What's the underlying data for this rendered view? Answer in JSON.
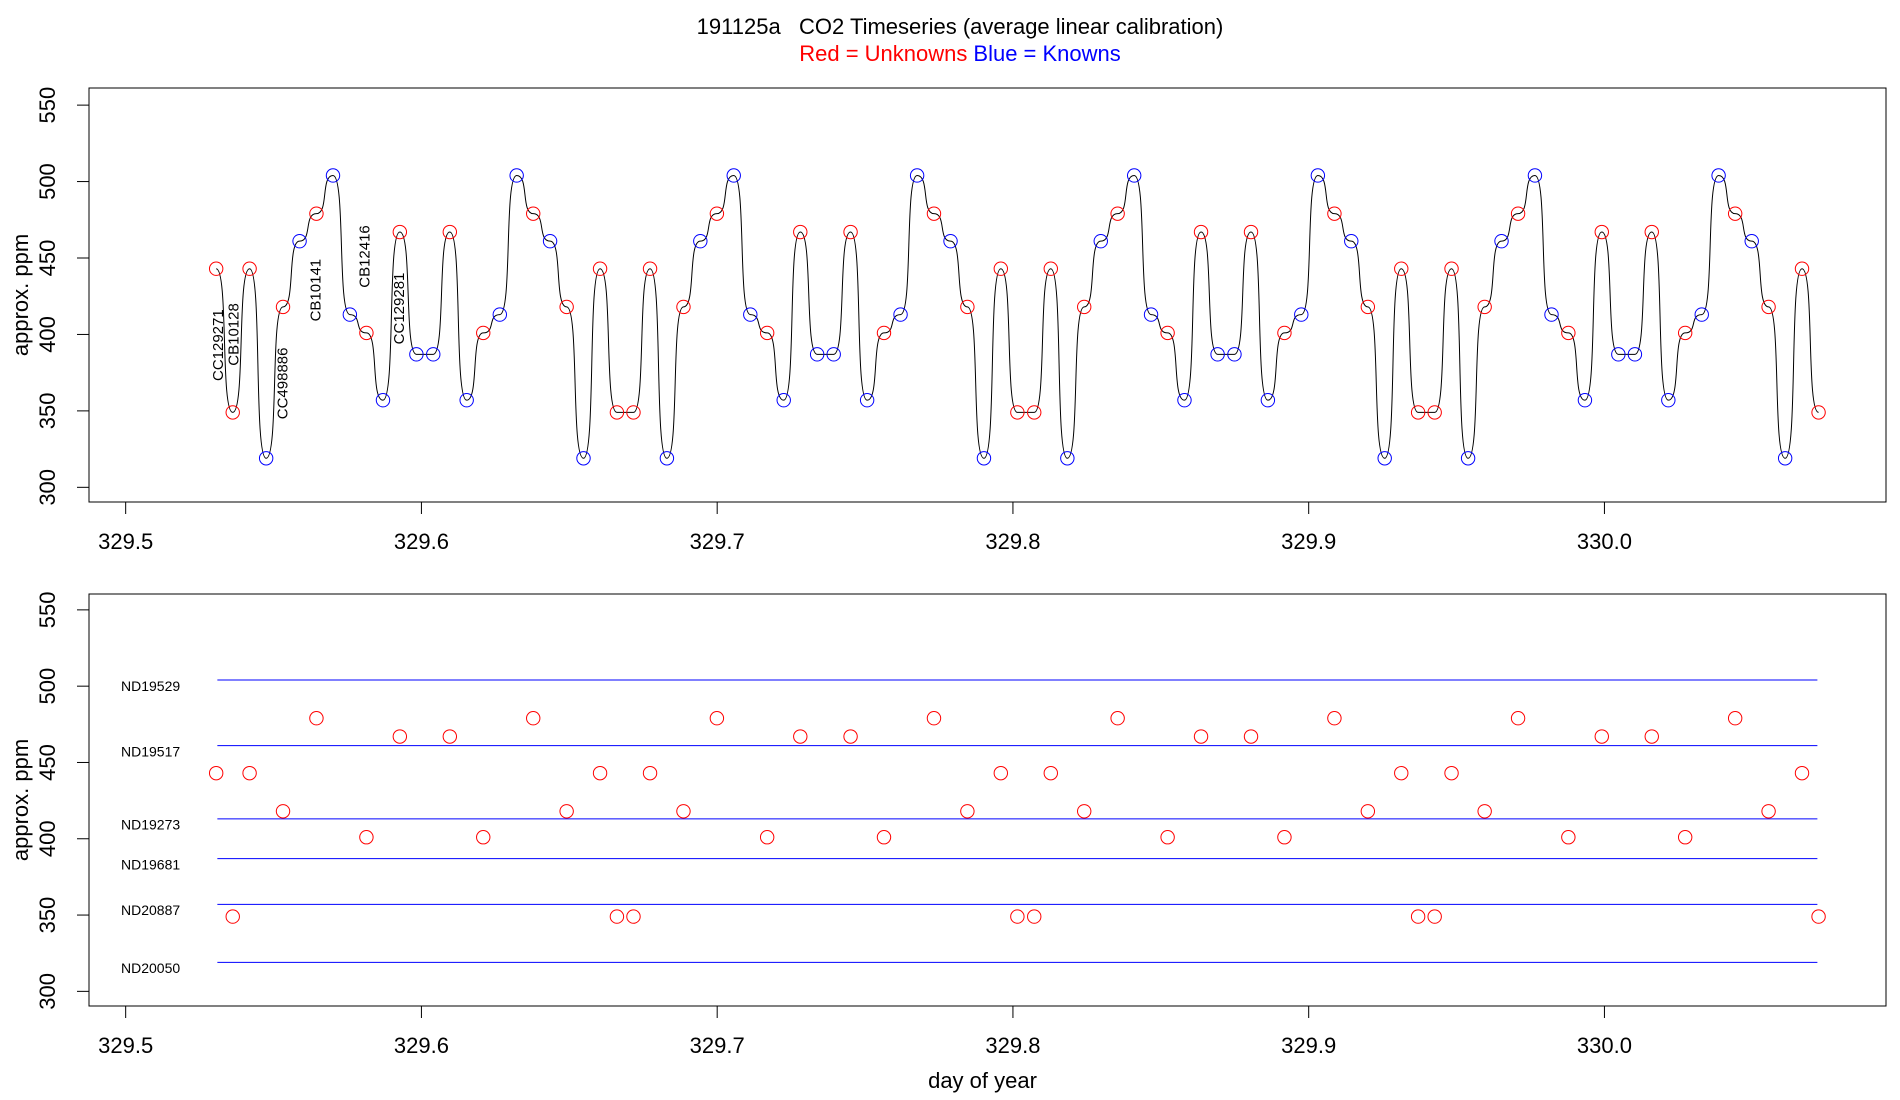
{
  "chart_data": [
    {
      "type": "line",
      "title": "191125a   CO2 Timeseries (average linear calibration)",
      "subtitle": [
        {
          "text": "Red = Unknowns",
          "color": "#ff0000"
        },
        {
          "text": "Blue = Knowns",
          "color": "#0000ff"
        }
      ],
      "y_label": "approx. ppm",
      "xlim": [
        329.4876,
        330.0952
      ],
      "ylim": [
        290.4,
        561.2
      ],
      "xticks": [
        329.5,
        329.6,
        329.7,
        329.8,
        329.9,
        {
          "value": 330,
          "label": "330.0"
        }
      ],
      "yticks": [
        300,
        350,
        400,
        450,
        500,
        550
      ],
      "line_color": "#000000",
      "x": [
        329.5306,
        329.5362,
        329.5419,
        329.5475,
        329.5532,
        329.5588,
        329.5645,
        329.5701,
        329.5758,
        329.5814,
        329.587,
        329.5927,
        329.5983,
        329.604,
        329.6096,
        329.6153,
        329.6209,
        329.6265,
        329.6322,
        329.6378,
        329.6435,
        329.6491,
        329.6548,
        329.6604,
        329.6661,
        329.6717,
        329.6773,
        329.683,
        329.6886,
        329.6943,
        329.6999,
        329.7056,
        329.7112,
        329.7169,
        329.7225,
        329.7281,
        329.7338,
        329.7394,
        329.7451,
        329.7507,
        329.7564,
        329.762,
        329.7676,
        329.7733,
        329.7789,
        329.7846,
        329.7902,
        329.7959,
        329.8015,
        329.8072,
        329.8128,
        329.8184,
        329.8241,
        329.8297,
        329.8354,
        329.841,
        329.8467,
        329.8523,
        329.858,
        329.8636,
        329.8692,
        329.8749,
        329.8805,
        329.8862,
        329.8918,
        329.8975,
        329.9031,
        329.9087,
        329.9144,
        329.92,
        329.9257,
        329.9313,
        329.937,
        329.9426,
        329.9483,
        329.9539,
        329.9595,
        329.9652,
        329.9708,
        329.9765,
        329.9821,
        329.9878,
        329.9934,
        329.9991,
        330.0047,
        330.0103,
        330.016,
        330.0216,
        330.0273,
        330.0329,
        330.0386,
        330.0442,
        330.0498,
        330.0555,
        330.0611,
        330.0668,
        330.0724
      ],
      "values": [
        443,
        349,
        443,
        319,
        418,
        461,
        479,
        504,
        413,
        401,
        357,
        467,
        387,
        387,
        467,
        357,
        401,
        413,
        504,
        479,
        461,
        418,
        319,
        443,
        349,
        349,
        443,
        319,
        418,
        461,
        479,
        504,
        413,
        401,
        357,
        467,
        387,
        387,
        467,
        357,
        401,
        413,
        504,
        479,
        461,
        418,
        319,
        443,
        349,
        349,
        443,
        319,
        418,
        461,
        479,
        504,
        413,
        401,
        357,
        467,
        387,
        387,
        467,
        357,
        401,
        413,
        504,
        479,
        461,
        418,
        319,
        443,
        349,
        349,
        443,
        319,
        418,
        461,
        479,
        504,
        413,
        401,
        357,
        467,
        387,
        387,
        467,
        357,
        401,
        413,
        504,
        479,
        461,
        418,
        319,
        443,
        349
      ],
      "point_colors": [
        "#ff0000",
        "#ff0000",
        "#ff0000",
        "#0000ff",
        "#ff0000",
        "#0000ff",
        "#ff0000",
        "#0000ff",
        "#0000ff",
        "#ff0000",
        "#0000ff",
        "#ff0000",
        "#0000ff",
        "#0000ff",
        "#ff0000",
        "#0000ff",
        "#ff0000",
        "#0000ff",
        "#0000ff",
        "#ff0000",
        "#0000ff",
        "#ff0000",
        "#0000ff",
        "#ff0000",
        "#ff0000",
        "#ff0000",
        "#ff0000",
        "#0000ff",
        "#ff0000",
        "#0000ff",
        "#ff0000",
        "#0000ff",
        "#0000ff",
        "#ff0000",
        "#0000ff",
        "#ff0000",
        "#0000ff",
        "#0000ff",
        "#ff0000",
        "#0000ff",
        "#ff0000",
        "#0000ff",
        "#0000ff",
        "#ff0000",
        "#0000ff",
        "#ff0000",
        "#0000ff",
        "#ff0000",
        "#ff0000",
        "#ff0000",
        "#ff0000",
        "#0000ff",
        "#ff0000",
        "#0000ff",
        "#ff0000",
        "#0000ff",
        "#0000ff",
        "#ff0000",
        "#0000ff",
        "#ff0000",
        "#0000ff",
        "#0000ff",
        "#ff0000",
        "#0000ff",
        "#ff0000",
        "#0000ff",
        "#0000ff",
        "#ff0000",
        "#0000ff",
        "#ff0000",
        "#0000ff",
        "#ff0000",
        "#ff0000",
        "#ff0000",
        "#ff0000",
        "#0000ff",
        "#ff0000",
        "#0000ff",
        "#ff0000",
        "#0000ff",
        "#0000ff",
        "#ff0000",
        "#0000ff",
        "#ff0000",
        "#0000ff",
        "#0000ff",
        "#ff0000",
        "#0000ff",
        "#ff0000",
        "#0000ff",
        "#0000ff",
        "#ff0000",
        "#0000ff",
        "#ff0000",
        "#0000ff",
        "#ff0000",
        "#ff0000"
      ],
      "annotation_color": "#ff0000",
      "annotations": [
        {
          "text": "CC129271",
          "x": 329.5315,
          "y": 393
        },
        {
          "text": "CB10128",
          "x": 329.5368,
          "y": 400
        },
        {
          "text": "CC498886",
          "x": 329.5534,
          "y": 368
        },
        {
          "text": "CB10141",
          "x": 329.5646,
          "y": 429
        },
        {
          "text": "CB12416",
          "x": 329.5811,
          "y": 451
        },
        {
          "text": "CC129281",
          "x": 329.5927,
          "y": 417
        }
      ]
    },
    {
      "type": "scatter",
      "y_label": "approx. ppm",
      "x_label": "day of year",
      "xlim": [
        329.4876,
        330.0952
      ],
      "ylim": [
        290.4,
        560.4
      ],
      "xticks": [
        329.5,
        329.6,
        329.7,
        329.8,
        329.9,
        {
          "value": 330,
          "label": "330.0"
        }
      ],
      "yticks": [
        300,
        350,
        400,
        450,
        500,
        550
      ],
      "color": "#ff0000",
      "x": [
        329.5306,
        329.5362,
        329.5419,
        329.5532,
        329.5645,
        329.5814,
        329.5927,
        329.6096,
        329.6209,
        329.6378,
        329.6491,
        329.6604,
        329.6661,
        329.6717,
        329.6773,
        329.6886,
        329.6999,
        329.7169,
        329.7281,
        329.7451,
        329.7564,
        329.7733,
        329.7846,
        329.7959,
        329.8015,
        329.8072,
        329.8128,
        329.8241,
        329.8354,
        329.8523,
        329.8636,
        329.8805,
        329.8918,
        329.9087,
        329.92,
        329.9313,
        329.937,
        329.9426,
        329.9483,
        329.9595,
        329.9708,
        329.9878,
        329.9991,
        330.016,
        330.0273,
        330.0442,
        330.0555,
        330.0668,
        330.0724
      ],
      "values": [
        443,
        349,
        443,
        418,
        479,
        401,
        467,
        467,
        401,
        479,
        418,
        443,
        349,
        349,
        443,
        418,
        479,
        401,
        467,
        467,
        401,
        479,
        418,
        443,
        349,
        349,
        443,
        418,
        479,
        401,
        467,
        467,
        401,
        479,
        418,
        443,
        349,
        349,
        443,
        418,
        479,
        401,
        467,
        467,
        401,
        479,
        418,
        443,
        349
      ],
      "reference_color": "#0000ff",
      "reference_xrange": [
        329.531,
        330.072
      ],
      "reference_lines": [
        {
          "name": "ND19529",
          "value": 504
        },
        {
          "name": "ND19517",
          "value": 461
        },
        {
          "name": "ND19273",
          "value": 413
        },
        {
          "name": "ND19681",
          "value": 387
        },
        {
          "name": "ND20887",
          "value": 357
        },
        {
          "name": "ND20050",
          "value": 319
        }
      ]
    }
  ]
}
